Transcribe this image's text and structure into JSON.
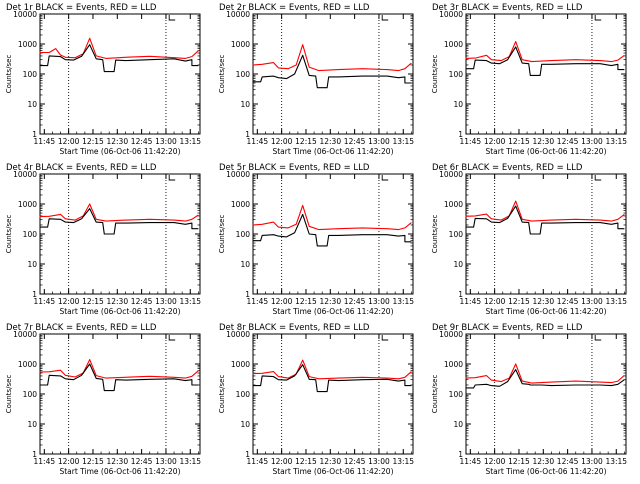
{
  "chart_data": [
    {
      "type": "line",
      "title": "Det 1r BLACK = Events, RED = LLD",
      "xlabel": "Start Time (06-Oct-06 11:42:20)",
      "ylabel": "Counts/sec",
      "yscale": "log",
      "ylim": [
        1,
        10000
      ],
      "xlim": [
        "11:42:20",
        "13:21:00"
      ],
      "xticks": [
        "11:45",
        "12:00",
        "12:15",
        "12:30",
        "12:45",
        "13:00",
        "13:15"
      ],
      "yticks": [
        "1",
        "10",
        "100",
        "1000",
        "10000"
      ],
      "vlines": [
        "12:00",
        "13:00"
      ],
      "series": [
        {
          "color": "#ff0000",
          "x": [
            "11:42",
            "11:48",
            "11:52",
            "11:55",
            "11:58",
            "12:04",
            "12:09",
            "12:13",
            "12:17",
            "12:23",
            "12:35",
            "12:50",
            "13:05",
            "13:12",
            "13:16",
            "13:20"
          ],
          "y": [
            520,
            520,
            700,
            430,
            360,
            350,
            470,
            1550,
            400,
            330,
            360,
            390,
            350,
            330,
            380,
            600
          ]
        },
        {
          "color": "#000000",
          "x": [
            "11:42",
            "11:47",
            "11:48",
            "11:55",
            "11:58",
            "12:03",
            "12:08",
            "12:13",
            "12:17",
            "12:21",
            "12:22",
            "12:28",
            "12:29",
            "12:35",
            "12:50",
            "13:05",
            "13:12",
            "13:16",
            "13:16",
            "13:20"
          ],
          "y": [
            190,
            190,
            400,
            380,
            300,
            290,
            390,
            950,
            320,
            300,
            120,
            120,
            290,
            280,
            300,
            320,
            270,
            300,
            190,
            190
          ]
        }
      ]
    },
    {
      "type": "line",
      "title": "Det 2r BLACK = Events, RED = LLD",
      "xlabel": "Start Time (06-Oct-06 11:42:20)",
      "ylabel": "Counts/sec",
      "yscale": "log",
      "ylim": [
        1,
        10000
      ],
      "xlim": [
        "11:42:20",
        "13:21:00"
      ],
      "xticks": [
        "11:45",
        "12:00",
        "12:15",
        "12:30",
        "12:45",
        "13:00",
        "13:15"
      ],
      "yticks": [
        "1",
        "10",
        "100",
        "1000",
        "10000"
      ],
      "vlines": [
        "12:00",
        "13:00"
      ],
      "series": [
        {
          "color": "#ff0000",
          "x": [
            "11:42",
            "11:48",
            "11:55",
            "11:58",
            "12:04",
            "12:09",
            "12:13",
            "12:17",
            "12:23",
            "12:35",
            "12:50",
            "13:05",
            "13:12",
            "13:16",
            "13:20"
          ],
          "y": [
            200,
            210,
            240,
            160,
            150,
            200,
            950,
            170,
            130,
            140,
            150,
            140,
            130,
            150,
            230
          ]
        },
        {
          "color": "#000000",
          "x": [
            "11:42",
            "11:47",
            "11:48",
            "11:55",
            "11:58",
            "12:03",
            "12:08",
            "12:13",
            "12:17",
            "12:21",
            "12:22",
            "12:28",
            "12:29",
            "12:35",
            "12:50",
            "13:05",
            "13:12",
            "13:16",
            "13:16",
            "13:20"
          ],
          "y": [
            55,
            55,
            80,
            85,
            75,
            70,
            100,
            420,
            90,
            85,
            35,
            35,
            80,
            80,
            85,
            85,
            75,
            80,
            50,
            50
          ]
        }
      ]
    },
    {
      "type": "line",
      "title": "Det 3r BLACK = Events, RED = LLD",
      "xlabel": "Start Time (06-Oct-06 11:42:20)",
      "ylabel": "Counts/sec",
      "yscale": "log",
      "ylim": [
        1,
        10000
      ],
      "xlim": [
        "11:42:20",
        "13:21:00"
      ],
      "xticks": [
        "11:45",
        "12:00",
        "12:15",
        "12:30",
        "12:45",
        "13:00",
        "13:15"
      ],
      "yticks": [
        "1",
        "10",
        "100",
        "1000",
        "10000"
      ],
      "vlines": [
        "12:00",
        "13:00"
      ],
      "series": [
        {
          "color": "#ff0000",
          "x": [
            "11:42",
            "11:48",
            "11:55",
            "11:58",
            "12:04",
            "12:09",
            "12:13",
            "12:17",
            "12:23",
            "12:35",
            "12:50",
            "13:05",
            "13:12",
            "13:16",
            "13:20"
          ],
          "y": [
            330,
            340,
            420,
            300,
            280,
            380,
            1200,
            300,
            260,
            280,
            300,
            280,
            260,
            290,
            420
          ]
        },
        {
          "color": "#000000",
          "x": [
            "11:42",
            "11:47",
            "11:48",
            "11:55",
            "11:58",
            "12:03",
            "12:08",
            "12:13",
            "12:17",
            "12:21",
            "12:22",
            "12:28",
            "12:29",
            "12:35",
            "12:50",
            "13:05",
            "13:12",
            "13:16",
            "13:16",
            "13:20"
          ],
          "y": [
            150,
            150,
            290,
            280,
            230,
            220,
            300,
            800,
            230,
            220,
            90,
            90,
            210,
            210,
            220,
            220,
            190,
            210,
            140,
            140
          ]
        }
      ]
    },
    {
      "type": "line",
      "title": "Det 4r BLACK = Events, RED = LLD",
      "xlabel": "Start Time (06-Oct-06 11:42:20)",
      "ylabel": "Counts/sec",
      "yscale": "log",
      "ylim": [
        1,
        10000
      ],
      "xlim": [
        "11:42:20",
        "13:21:00"
      ],
      "xticks": [
        "11:45",
        "12:00",
        "12:15",
        "12:30",
        "12:45",
        "13:00",
        "13:15"
      ],
      "yticks": [
        "1",
        "10",
        "100",
        "1000",
        "10000"
      ],
      "vlines": [
        "12:00",
        "13:00"
      ],
      "series": [
        {
          "color": "#ff0000",
          "x": [
            "11:42",
            "11:48",
            "11:55",
            "11:58",
            "12:04",
            "12:09",
            "12:13",
            "12:17",
            "12:23",
            "12:35",
            "12:50",
            "13:05",
            "13:12",
            "13:16",
            "13:20"
          ],
          "y": [
            380,
            390,
            450,
            320,
            290,
            400,
            1000,
            310,
            270,
            290,
            310,
            290,
            270,
            310,
            430
          ]
        },
        {
          "color": "#000000",
          "x": [
            "11:42",
            "11:47",
            "11:48",
            "11:55",
            "11:58",
            "12:03",
            "12:08",
            "12:13",
            "12:17",
            "12:21",
            "12:22",
            "12:28",
            "12:29",
            "12:35",
            "12:50",
            "13:05",
            "13:12",
            "13:16",
            "13:16",
            "13:20"
          ],
          "y": [
            170,
            170,
            320,
            310,
            250,
            240,
            320,
            700,
            250,
            240,
            100,
            100,
            230,
            230,
            240,
            240,
            210,
            230,
            150,
            150
          ]
        }
      ]
    },
    {
      "type": "line",
      "title": "Det 5r BLACK = Events, RED = LLD",
      "xlabel": "Start Time (06-Oct-06 11:42:20)",
      "ylabel": "Counts/sec",
      "yscale": "log",
      "ylim": [
        1,
        10000
      ],
      "xlim": [
        "11:42:20",
        "13:21:00"
      ],
      "xticks": [
        "11:45",
        "12:00",
        "12:15",
        "12:30",
        "12:45",
        "13:00",
        "13:15"
      ],
      "yticks": [
        "1",
        "10",
        "100",
        "1000",
        "10000"
      ],
      "vlines": [
        "12:00",
        "13:00"
      ],
      "series": [
        {
          "color": "#ff0000",
          "x": [
            "11:42",
            "11:48",
            "11:55",
            "11:58",
            "12:04",
            "12:09",
            "12:13",
            "12:17",
            "12:23",
            "12:35",
            "12:50",
            "13:05",
            "13:12",
            "13:16",
            "13:20"
          ],
          "y": [
            200,
            210,
            250,
            170,
            160,
            210,
            900,
            180,
            140,
            150,
            160,
            150,
            140,
            160,
            240
          ]
        },
        {
          "color": "#000000",
          "x": [
            "11:42",
            "11:47",
            "11:48",
            "11:55",
            "11:58",
            "12:03",
            "12:08",
            "12:13",
            "12:17",
            "12:21",
            "12:22",
            "12:28",
            "12:29",
            "12:35",
            "12:50",
            "13:05",
            "13:12",
            "13:16",
            "13:16",
            "13:20"
          ],
          "y": [
            60,
            60,
            90,
            95,
            85,
            80,
            110,
            450,
            100,
            95,
            40,
            40,
            90,
            90,
            95,
            95,
            85,
            90,
            55,
            55
          ]
        }
      ]
    },
    {
      "type": "line",
      "title": "Det 6r BLACK = Events, RED = LLD",
      "xlabel": "Start Time (06-Oct-06 11:42:20)",
      "ylabel": "Counts/sec",
      "yscale": "log",
      "ylim": [
        1,
        10000
      ],
      "xlim": [
        "11:42:20",
        "13:21:00"
      ],
      "xticks": [
        "11:45",
        "12:00",
        "12:15",
        "12:30",
        "12:45",
        "13:00",
        "13:15"
      ],
      "yticks": [
        "1",
        "10",
        "100",
        "1000",
        "10000"
      ],
      "vlines": [
        "12:00",
        "13:00"
      ],
      "series": [
        {
          "color": "#ff0000",
          "x": [
            "11:42",
            "11:48",
            "11:55",
            "11:58",
            "12:04",
            "12:09",
            "12:13",
            "12:17",
            "12:23",
            "12:35",
            "12:50",
            "13:05",
            "13:12",
            "13:16",
            "13:20"
          ],
          "y": [
            390,
            400,
            460,
            320,
            290,
            400,
            1250,
            310,
            270,
            290,
            310,
            290,
            270,
            310,
            450
          ]
        },
        {
          "color": "#000000",
          "x": [
            "11:42",
            "11:47",
            "11:48",
            "11:55",
            "11:58",
            "12:03",
            "12:08",
            "12:13",
            "12:17",
            "12:21",
            "12:22",
            "12:28",
            "12:29",
            "12:35",
            "12:50",
            "13:05",
            "13:12",
            "13:16",
            "13:16",
            "13:20"
          ],
          "y": [
            170,
            170,
            330,
            320,
            250,
            240,
            330,
            850,
            250,
            240,
            100,
            100,
            230,
            230,
            240,
            240,
            210,
            230,
            150,
            150
          ]
        }
      ]
    },
    {
      "type": "line",
      "title": "Det 7r BLACK = Events, RED = LLD",
      "xlabel": "Start Time (06-Oct-06 11:42:20)",
      "ylabel": "Counts/sec",
      "yscale": "log",
      "ylim": [
        1,
        10000
      ],
      "xlim": [
        "11:42:20",
        "13:21:00"
      ],
      "xticks": [
        "11:45",
        "12:00",
        "12:15",
        "12:30",
        "12:45",
        "13:00",
        "13:15"
      ],
      "yticks": [
        "1",
        "10",
        "100",
        "1000",
        "10000"
      ],
      "vlines": [
        "12:00",
        "13:00"
      ],
      "series": [
        {
          "color": "#ff0000",
          "x": [
            "11:42",
            "11:48",
            "11:55",
            "11:58",
            "12:04",
            "12:09",
            "12:13",
            "12:17",
            "12:23",
            "12:35",
            "12:50",
            "13:05",
            "13:12",
            "13:16",
            "13:20"
          ],
          "y": [
            540,
            550,
            620,
            420,
            370,
            500,
            1400,
            410,
            340,
            360,
            390,
            360,
            340,
            390,
            600
          ]
        },
        {
          "color": "#000000",
          "x": [
            "11:42",
            "11:47",
            "11:48",
            "11:55",
            "11:58",
            "12:03",
            "12:08",
            "12:13",
            "12:17",
            "12:21",
            "12:22",
            "12:28",
            "12:29",
            "12:35",
            "12:50",
            "13:05",
            "13:12",
            "13:16",
            "13:16",
            "13:20"
          ],
          "y": [
            200,
            200,
            420,
            400,
            320,
            300,
            420,
            1000,
            330,
            310,
            130,
            130,
            300,
            290,
            310,
            320,
            280,
            300,
            200,
            200
          ]
        }
      ]
    },
    {
      "type": "line",
      "title": "Det 8r BLACK = Events, RED = LLD",
      "xlabel": "Start Time (06-Oct-06 11:42:20)",
      "ylabel": "Counts/sec",
      "yscale": "log",
      "ylim": [
        1,
        10000
      ],
      "xlim": [
        "11:42:20",
        "13:21:00"
      ],
      "xticks": [
        "11:45",
        "12:00",
        "12:15",
        "12:30",
        "12:45",
        "13:00",
        "13:15"
      ],
      "yticks": [
        "1",
        "10",
        "100",
        "1000",
        "10000"
      ],
      "vlines": [
        "12:00",
        "13:00"
      ],
      "series": [
        {
          "color": "#ff0000",
          "x": [
            "11:42",
            "11:48",
            "11:55",
            "11:58",
            "12:04",
            "12:09",
            "12:13",
            "12:17",
            "12:23",
            "12:35",
            "12:50",
            "13:05",
            "13:12",
            "13:16",
            "13:20"
          ],
          "y": [
            480,
            490,
            560,
            380,
            340,
            460,
            1350,
            380,
            320,
            340,
            360,
            340,
            320,
            360,
            560
          ]
        },
        {
          "color": "#000000",
          "x": [
            "11:42",
            "11:47",
            "11:48",
            "11:55",
            "11:58",
            "12:03",
            "12:08",
            "12:13",
            "12:17",
            "12:21",
            "12:22",
            "12:28",
            "12:29",
            "12:35",
            "12:50",
            "13:05",
            "13:12",
            "13:16",
            "13:16",
            "13:20"
          ],
          "y": [
            190,
            190,
            400,
            380,
            300,
            290,
            400,
            950,
            310,
            300,
            120,
            120,
            290,
            280,
            300,
            310,
            270,
            290,
            190,
            190
          ]
        }
      ]
    },
    {
      "type": "line",
      "title": "Det 9r BLACK = Events, RED = LLD",
      "xlabel": "Start Time (06-Oct-06 11:42:20)",
      "ylabel": "Counts/sec",
      "yscale": "log",
      "ylim": [
        1,
        10000
      ],
      "xlim": [
        "11:42:20",
        "13:21:00"
      ],
      "xticks": [
        "11:45",
        "12:00",
        "12:15",
        "12:30",
        "12:45",
        "13:00",
        "13:15"
      ],
      "yticks": [
        "1",
        "10",
        "100",
        "1000",
        "10000"
      ],
      "vlines": [
        "12:00",
        "13:00"
      ],
      "series": [
        {
          "color": "#ff0000",
          "x": [
            "11:42",
            "11:48",
            "11:55",
            "11:58",
            "12:04",
            "12:09",
            "12:13",
            "12:17",
            "12:23",
            "12:35",
            "12:50",
            "13:05",
            "13:12",
            "13:16",
            "13:20"
          ],
          "y": [
            340,
            350,
            410,
            290,
            260,
            340,
            1000,
            270,
            230,
            250,
            270,
            250,
            240,
            270,
            420
          ]
        },
        {
          "color": "#000000",
          "x": [
            "11:42",
            "11:47",
            "11:48",
            "11:55",
            "11:58",
            "12:03",
            "12:08",
            "12:13",
            "12:17",
            "12:21",
            "12:22",
            "12:28",
            "12:29",
            "12:35",
            "12:50",
            "13:05",
            "13:12",
            "13:16",
            "13:16",
            "13:20"
          ],
          "y": [
            160,
            160,
            200,
            210,
            190,
            180,
            260,
            650,
            220,
            210,
            200,
            200,
            200,
            190,
            200,
            200,
            190,
            210,
            210,
            300
          ]
        }
      ]
    }
  ]
}
